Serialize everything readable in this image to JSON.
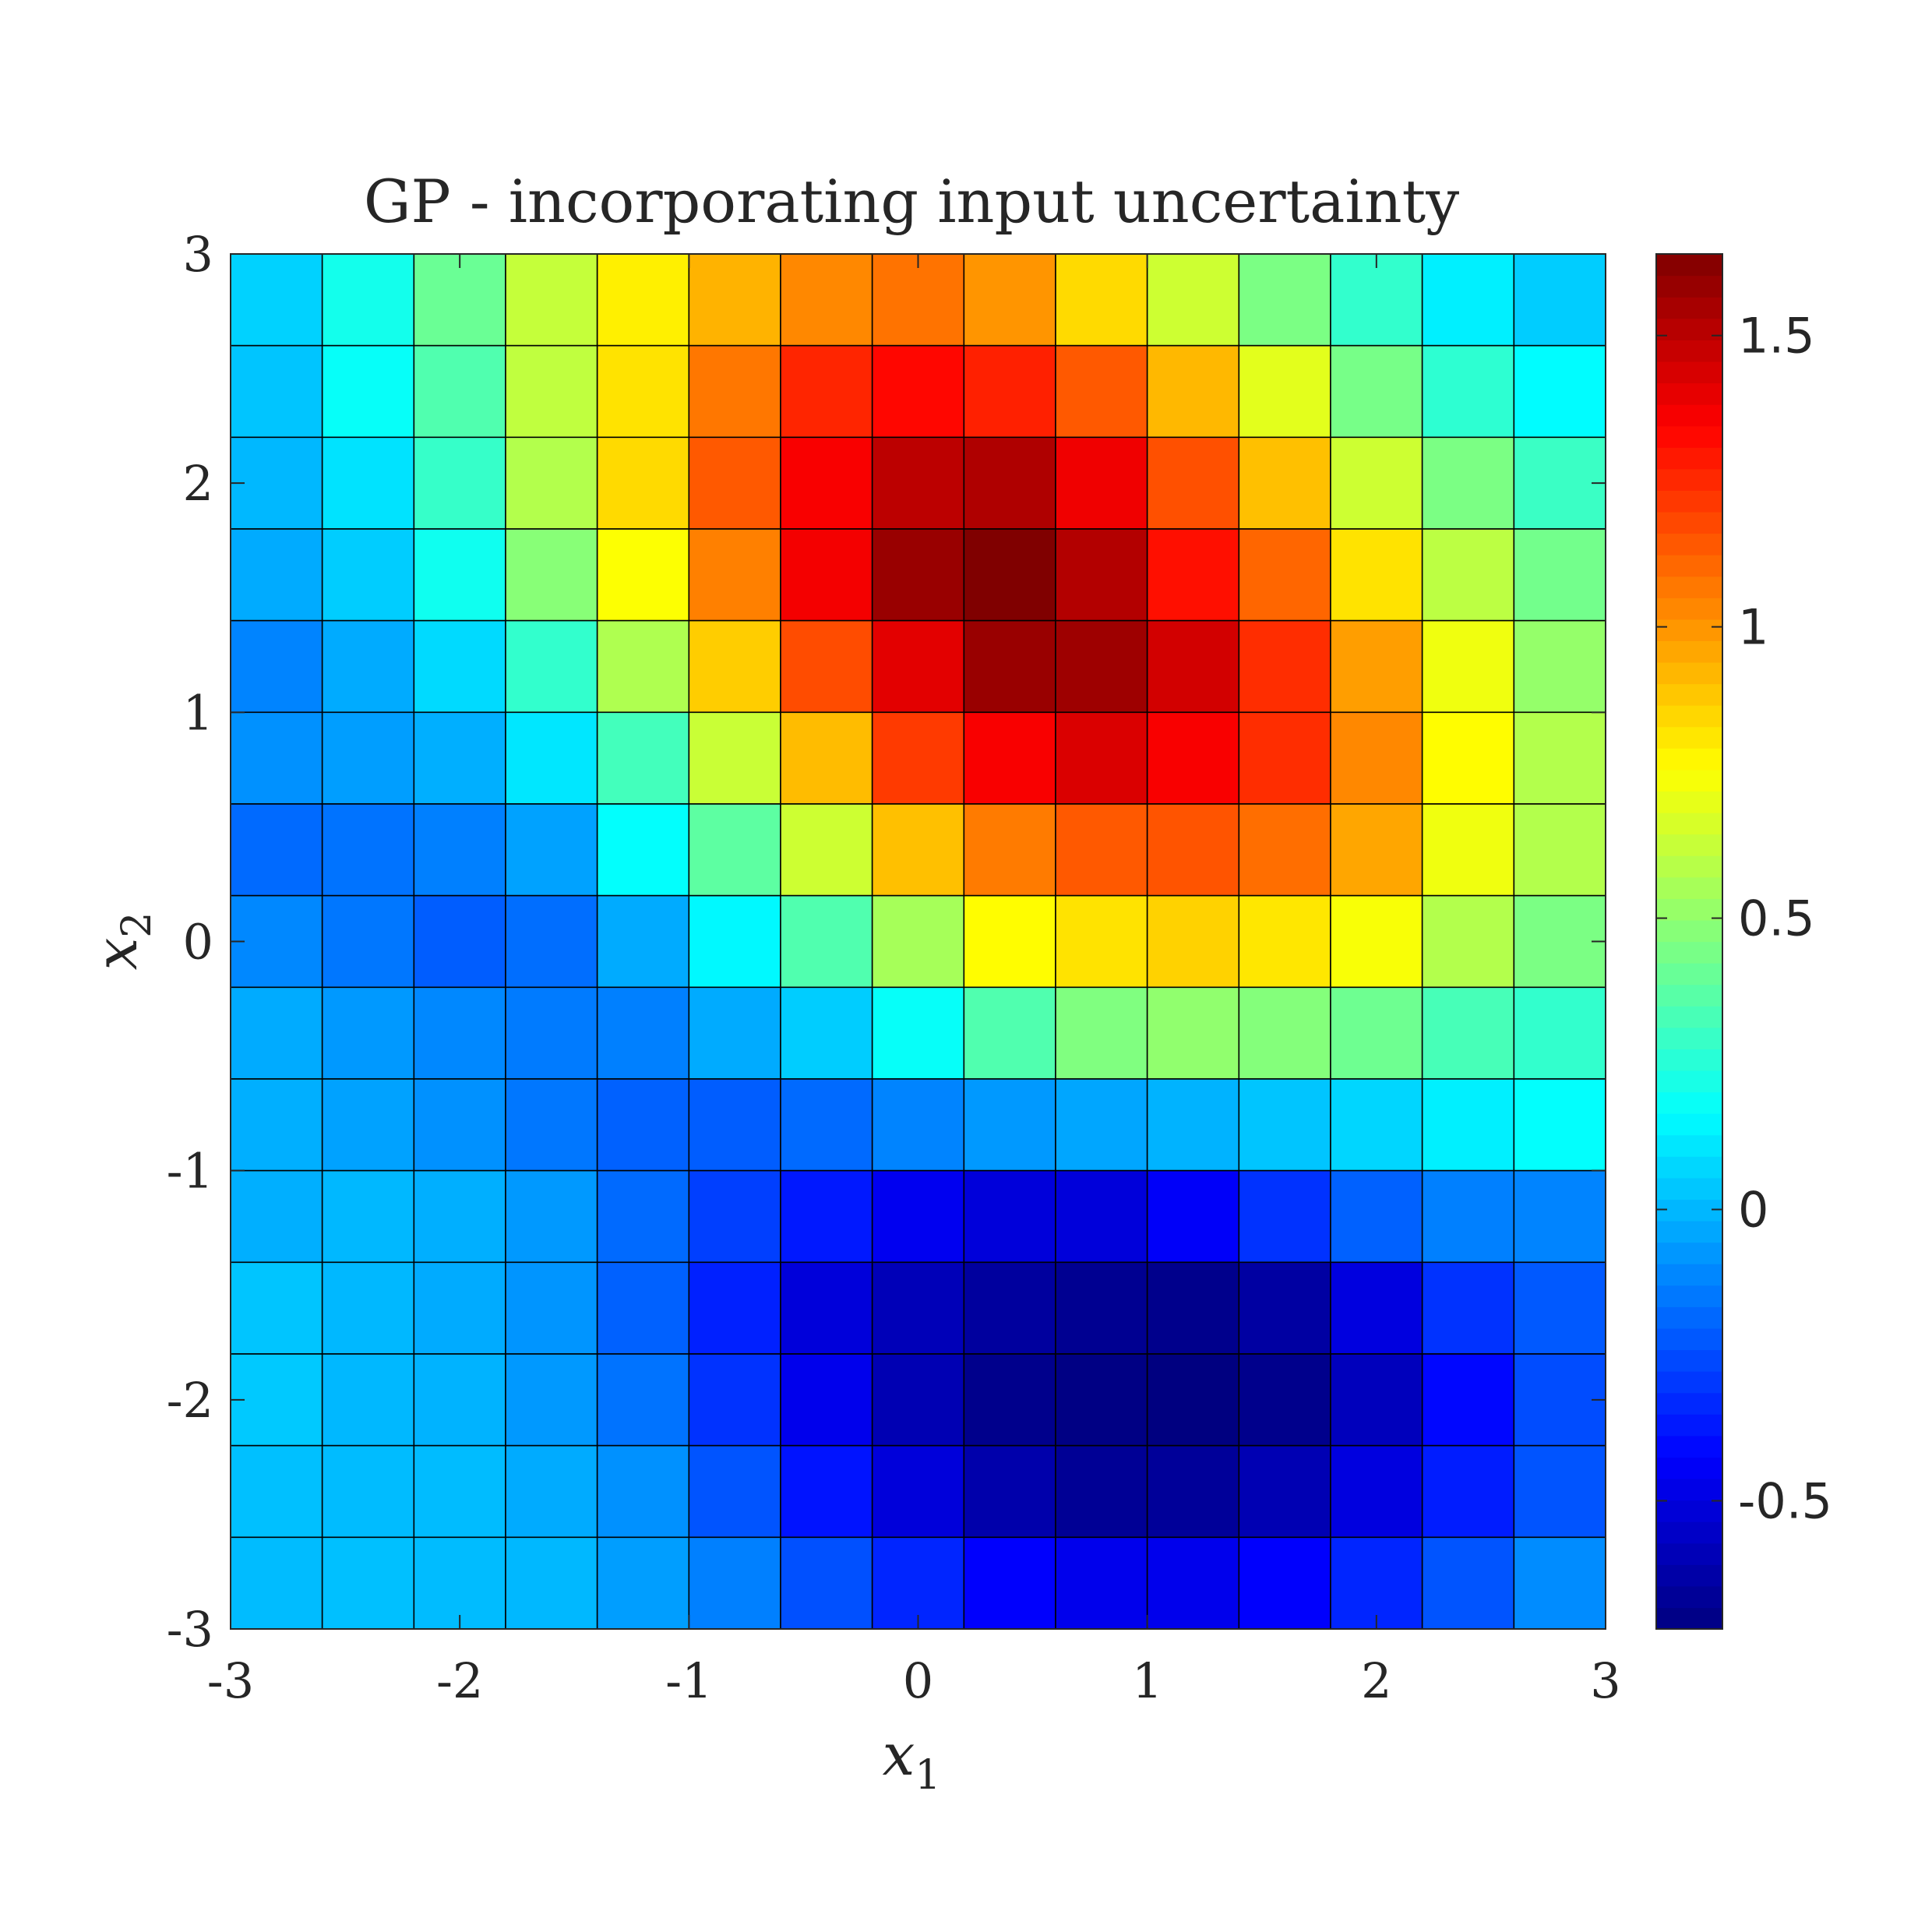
{
  "chart_data": {
    "type": "heatmap",
    "title": "GP - incorporating input uncertainty",
    "xlabel": "x",
    "xlabel_sub": "1",
    "ylabel": "x",
    "ylabel_sub": "2",
    "xlim": [
      -3,
      3
    ],
    "ylim": [
      -3,
      3
    ],
    "xticks": [
      -3,
      -2,
      -1,
      0,
      1,
      2,
      3
    ],
    "yticks": [
      -3,
      -2,
      -1,
      0,
      1,
      2,
      3
    ],
    "xtick_labels": [
      "-3",
      "-2",
      "-1",
      "0",
      "1",
      "2",
      "3"
    ],
    "ytick_labels": [
      "-3",
      "-2",
      "-1",
      "0",
      "1",
      "2",
      "3"
    ],
    "grid_cols": 15,
    "grid_rows": 15,
    "row_order": "top-to-bottom",
    "colormap": "jet",
    "colorbar": {
      "min": -0.72,
      "max": 1.64,
      "ticks": [
        -0.5,
        0,
        0.5,
        1,
        1.5
      ],
      "tick_labels": [
        "-0.5",
        "0",
        "0.5",
        "1",
        "1.5"
      ],
      "placement": "right"
    },
    "values": [
      [
        0.06,
        0.21,
        0.41,
        0.62,
        0.79,
        0.93,
        1.03,
        1.08,
        1.0,
        0.84,
        0.64,
        0.45,
        0.28,
        0.13,
        0.05
      ],
      [
        0.03,
        0.18,
        0.35,
        0.61,
        0.82,
        1.07,
        1.26,
        1.33,
        1.27,
        1.14,
        0.92,
        0.69,
        0.44,
        0.27,
        0.16
      ],
      [
        0.0,
        0.1,
        0.29,
        0.58,
        0.84,
        1.14,
        1.36,
        1.5,
        1.53,
        1.38,
        1.16,
        0.9,
        0.64,
        0.45,
        0.3
      ],
      [
        -0.03,
        0.05,
        0.2,
        0.48,
        0.75,
        1.05,
        1.37,
        1.58,
        1.64,
        1.52,
        1.31,
        1.11,
        0.82,
        0.6,
        0.43
      ],
      [
        -0.12,
        -0.03,
        0.08,
        0.28,
        0.57,
        0.87,
        1.17,
        1.41,
        1.58,
        1.57,
        1.45,
        1.24,
        0.98,
        0.72,
        0.51
      ],
      [
        -0.09,
        -0.06,
        -0.02,
        0.11,
        0.32,
        0.63,
        0.91,
        1.21,
        1.36,
        1.43,
        1.36,
        1.24,
        1.03,
        0.76,
        0.58
      ],
      [
        -0.18,
        -0.16,
        -0.13,
        -0.05,
        0.17,
        0.38,
        0.64,
        0.9,
        1.06,
        1.14,
        1.15,
        1.09,
        0.96,
        0.72,
        0.58
      ],
      [
        -0.11,
        -0.15,
        -0.21,
        -0.17,
        -0.03,
        0.15,
        0.35,
        0.55,
        0.76,
        0.82,
        0.86,
        0.81,
        0.74,
        0.58,
        0.45
      ],
      [
        -0.03,
        -0.07,
        -0.11,
        -0.14,
        -0.13,
        -0.03,
        0.05,
        0.18,
        0.35,
        0.46,
        0.5,
        0.47,
        0.42,
        0.33,
        0.28
      ],
      [
        -0.02,
        -0.05,
        -0.09,
        -0.15,
        -0.2,
        -0.21,
        -0.18,
        -0.12,
        -0.07,
        -0.04,
        -0.01,
        0.03,
        0.07,
        0.13,
        0.17
      ],
      [
        -0.02,
        0.0,
        -0.02,
        -0.07,
        -0.18,
        -0.28,
        -0.37,
        -0.46,
        -0.51,
        -0.51,
        -0.44,
        -0.31,
        -0.2,
        -0.13,
        -0.12
      ],
      [
        0.03,
        0.0,
        -0.03,
        -0.08,
        -0.2,
        -0.35,
        -0.51,
        -0.59,
        -0.65,
        -0.68,
        -0.69,
        -0.64,
        -0.5,
        -0.31,
        -0.22
      ],
      [
        0.04,
        0.0,
        -0.01,
        -0.07,
        -0.16,
        -0.31,
        -0.47,
        -0.6,
        -0.69,
        -0.71,
        -0.72,
        -0.69,
        -0.58,
        -0.41,
        -0.25
      ],
      [
        0.02,
        0.01,
        0.01,
        -0.03,
        -0.09,
        -0.23,
        -0.38,
        -0.51,
        -0.62,
        -0.67,
        -0.66,
        -0.6,
        -0.5,
        -0.36,
        -0.23
      ],
      [
        0.01,
        0.02,
        0.01,
        0.0,
        -0.06,
        -0.13,
        -0.24,
        -0.34,
        -0.43,
        -0.47,
        -0.47,
        -0.43,
        -0.34,
        -0.23,
        -0.1
      ]
    ]
  }
}
